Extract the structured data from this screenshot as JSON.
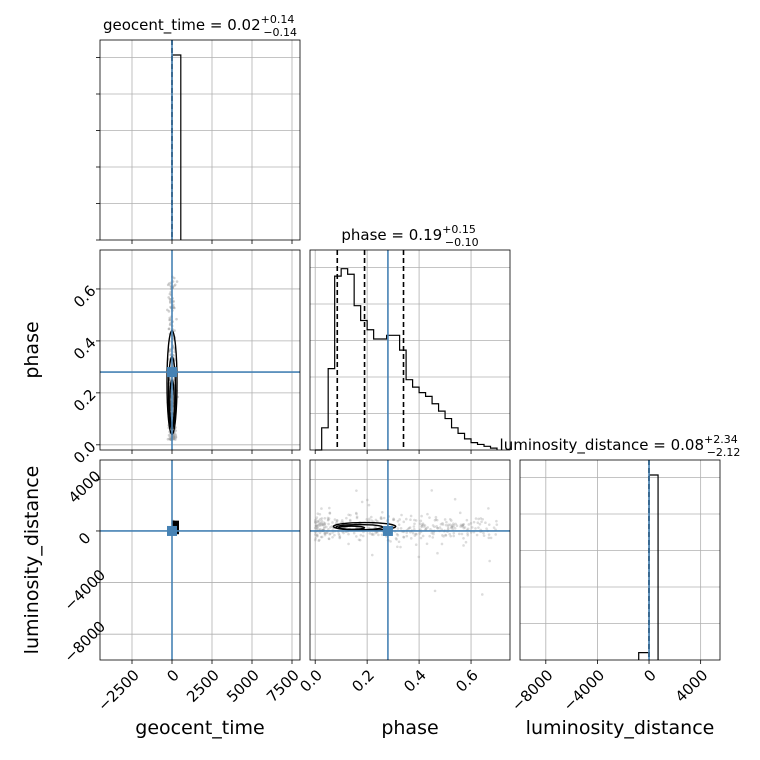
{
  "chart_data": {
    "type": "corner",
    "colors": {
      "truth": "#4682b4",
      "hist": "#000000",
      "quantile": "#000000",
      "grid": "#b0b0b0",
      "scatter": "#9a9a9a"
    },
    "parameters": [
      {
        "name": "geocent_time",
        "xlabel": "geocent_time",
        "title": {
          "label": "geocent_time = 0.02",
          "sup": "+0.14",
          "sub": "−0.14"
        },
        "range": [
          -4500,
          8000
        ],
        "ticks": [
          -2500,
          0,
          2500,
          5000,
          7500
        ],
        "tick_labels": [
          "−2500",
          "0",
          "2500",
          "5000",
          "7500"
        ],
        "truth": 0,
        "quantiles": [
          0,
          0,
          0
        ],
        "hist": {
          "edges": [
            0,
            550
          ],
          "heights": [
            1.0
          ]
        }
      },
      {
        "name": "phase",
        "xlabel": "phase",
        "ylabel": "phase",
        "title": {
          "label": "phase = 0.19",
          "sup": "+0.15",
          "sub": "−0.10"
        },
        "range": [
          -0.02,
          0.75
        ],
        "ticks": [
          0.0,
          0.2,
          0.4,
          0.6
        ],
        "tick_labels": [
          "0.0",
          "0.2",
          "0.4",
          "0.6"
        ],
        "truth": 0.28,
        "quantiles": [
          0.085,
          0.19,
          0.34
        ],
        "hist": {
          "edges": [
            0.0,
            0.025,
            0.05,
            0.075,
            0.1,
            0.125,
            0.15,
            0.175,
            0.2,
            0.225,
            0.25,
            0.275,
            0.3,
            0.325,
            0.35,
            0.375,
            0.4,
            0.425,
            0.45,
            0.475,
            0.5,
            0.525,
            0.55,
            0.575,
            0.6,
            0.625,
            0.65,
            0.675,
            0.7
          ],
          "heights": [
            0.0,
            0.12,
            0.44,
            0.94,
            0.98,
            0.95,
            0.78,
            0.7,
            0.65,
            0.6,
            0.6,
            0.62,
            0.62,
            0.54,
            0.38,
            0.34,
            0.31,
            0.29,
            0.25,
            0.21,
            0.17,
            0.12,
            0.09,
            0.06,
            0.04,
            0.03,
            0.02,
            0.01
          ]
        }
      },
      {
        "name": "luminosity_distance",
        "xlabel": "luminosity_distance",
        "ylabel": "luminosity_distance",
        "title": {
          "label": "luminosity_distance = 0.08",
          "sup": "+2.34",
          "sub": "−2.12"
        },
        "range": [
          -10000,
          5500
        ],
        "ticks": [
          -8000,
          -4000,
          0,
          4000
        ],
        "tick_labels": [
          "−8000",
          "−4000",
          "0",
          "4000"
        ],
        "truth": 0,
        "quantiles": [
          0,
          0,
          0
        ],
        "hist": {
          "edges": [
            -800,
            0,
            700
          ],
          "heights": [
            0.04,
            1.0
          ]
        }
      }
    ],
    "scatter_2d": {
      "phase_vs_geocent_time": {
        "x_center": 0,
        "x_spread": 120,
        "y_range": [
          0.02,
          0.65
        ]
      },
      "luminosity_distance_vs_geocent_time": {
        "x_center": 120,
        "y_range": [
          -250,
          800
        ]
      },
      "luminosity_distance_vs_phase": {
        "x_range": [
          0.0,
          0.7
        ],
        "y_center": 200,
        "y_spread": 500
      }
    },
    "grid": true
  }
}
